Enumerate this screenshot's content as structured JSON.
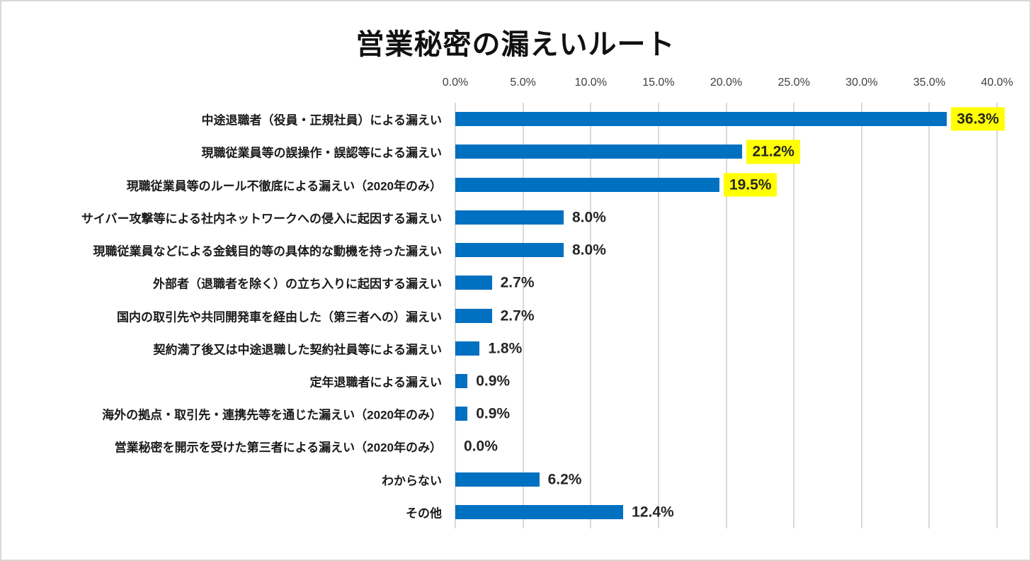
{
  "chart_data": {
    "type": "bar",
    "orientation": "horizontal",
    "title": "営業秘密の漏えいルート",
    "categories": [
      "中途退職者（役員・正規社員）による漏えい",
      "現職従業員等の誤操作・誤認等による漏えい",
      "現職従業員等のルール不徹底による漏えい（2020年のみ）",
      "サイバー攻撃等による社内ネットワークへの侵入に起因する漏えい",
      "現職従業員などによる金銭目的等の具体的な動機を持った漏えい",
      "外部者（退職者を除く）の立ち入りに起因する漏えい",
      "国内の取引先や共同開発車を経由した（第三者への）漏えい",
      "契約満了後又は中途退職した契約社員等による漏えい",
      "定年退職者による漏えい",
      "海外の拠点・取引先・連携先等を通じた漏えい（2020年のみ）",
      "営業秘密を開示を受けた第三者による漏えい（2020年のみ）",
      "わからない",
      "その他"
    ],
    "values": [
      36.3,
      21.2,
      19.5,
      8.0,
      8.0,
      2.7,
      2.7,
      1.8,
      0.9,
      0.9,
      0.0,
      6.2,
      12.4
    ],
    "value_labels": [
      "36.3%",
      "21.2%",
      "19.5%",
      "8.0%",
      "8.0%",
      "2.7%",
      "2.7%",
      "1.8%",
      "0.9%",
      "0.9%",
      "0.0%",
      "6.2%",
      "12.4%"
    ],
    "highlighted": [
      true,
      true,
      true,
      false,
      false,
      false,
      false,
      false,
      false,
      false,
      false,
      false,
      false
    ],
    "x_ticks": [
      "0.0%",
      "5.0%",
      "10.0%",
      "15.0%",
      "20.0%",
      "25.0%",
      "30.0%",
      "35.0%",
      "40.0%"
    ],
    "xlabel": "",
    "ylabel": "",
    "xlim": [
      0,
      40
    ],
    "grid": "vertical-only",
    "legend": "none",
    "colors": {
      "bar": "#0070C0",
      "highlight_bg": "#FFFF00",
      "value_text": "#262626",
      "grid": "#D9D9D9",
      "tick_text": "#404040",
      "border": "#D8D8D8"
    }
  }
}
